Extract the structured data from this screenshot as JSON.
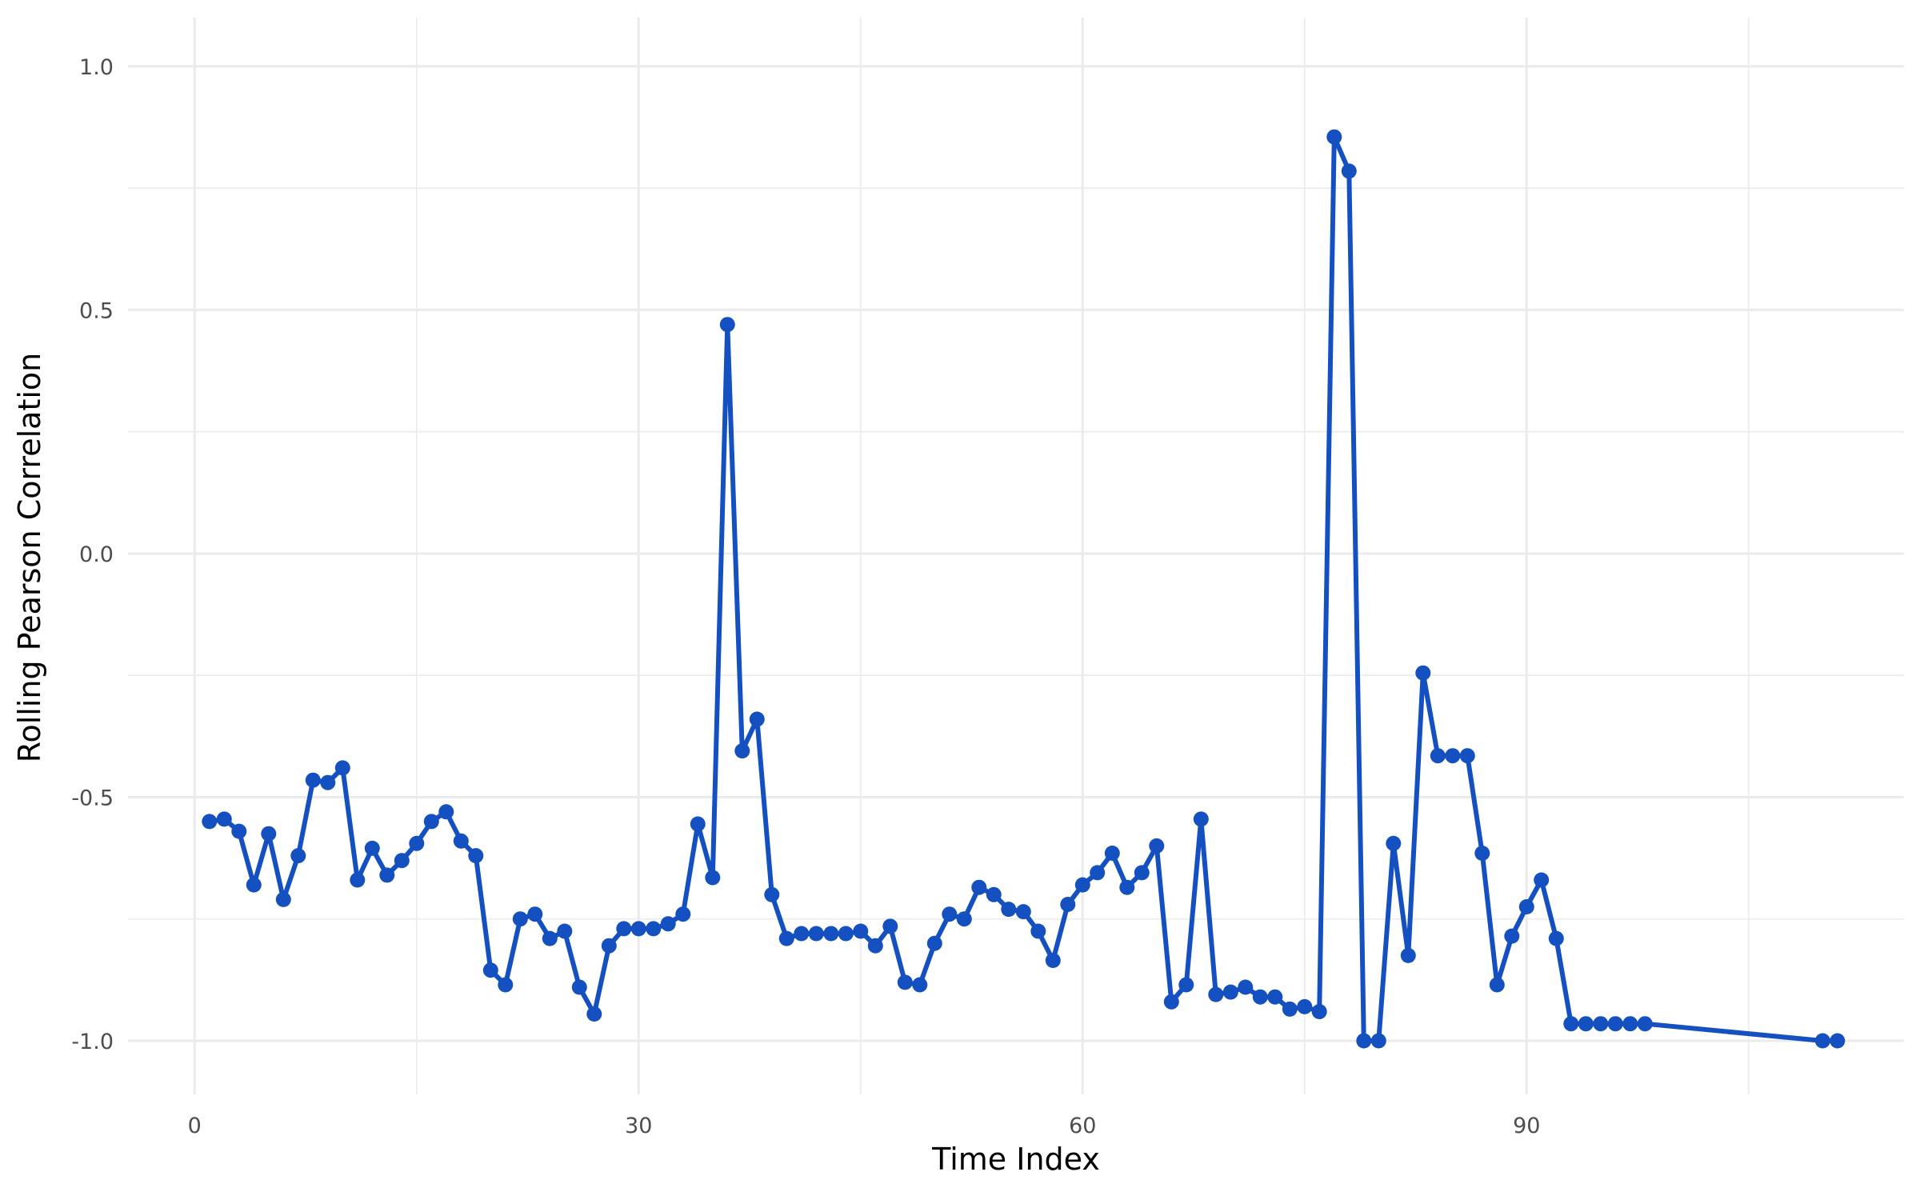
{
  "chart_data": {
    "type": "line",
    "title": "",
    "xlabel": "Time Index",
    "ylabel": "Rolling Pearson Correlation",
    "xlim": [
      -4.5,
      115.5
    ],
    "ylim": [
      -1.11,
      1.1
    ],
    "x_major_ticks": [
      0,
      30,
      60,
      90
    ],
    "x_tick_labels": [
      "0",
      "30",
      "60",
      "90"
    ],
    "x_minor_ticks": [
      15,
      45,
      75,
      105
    ],
    "y_major_ticks": [
      1.0,
      0.5,
      0.0,
      -0.5,
      -1.0
    ],
    "y_tick_labels": [
      "1.0",
      "0.5",
      "0.0",
      "-0.5",
      "-1.0"
    ],
    "y_minor_ticks": [
      0.75,
      0.25,
      -0.25,
      -0.75
    ],
    "grid": true,
    "legend": "none",
    "colors": {
      "line": "#1450c0",
      "grid": "#ebebeb",
      "tick_text": "#4d4d4d",
      "axis_text": "#000000",
      "background": "#ffffff"
    },
    "series": [
      {
        "x": [
          1,
          2,
          3,
          4,
          5,
          6,
          7,
          8,
          9,
          10,
          11,
          12,
          13,
          14,
          15,
          16,
          17,
          18,
          19,
          20,
          21,
          22,
          23,
          24,
          25,
          26,
          27,
          28,
          29,
          30,
          31,
          32,
          33,
          34,
          35,
          36,
          37,
          38,
          39,
          40,
          41,
          42,
          43,
          44,
          45,
          46,
          47,
          48,
          49,
          50,
          51,
          52,
          53,
          54,
          55,
          56,
          57,
          58,
          59,
          60,
          61,
          62,
          63,
          64,
          65,
          66,
          67,
          68,
          69,
          70,
          71,
          72,
          73,
          74,
          75,
          76,
          77,
          78,
          79,
          80,
          81,
          82,
          83,
          84,
          85,
          86,
          87,
          88,
          89,
          90,
          91,
          92,
          93,
          94,
          95,
          96,
          97,
          98,
          110,
          111
        ],
        "values": [
          -0.55,
          -0.545,
          -0.57,
          -0.68,
          -0.575,
          -0.71,
          -0.62,
          -0.465,
          -0.47,
          -0.44,
          -0.67,
          -0.605,
          -0.66,
          -0.63,
          -0.595,
          -0.55,
          -0.53,
          -0.59,
          -0.62,
          -0.855,
          -0.885,
          -0.75,
          -0.74,
          -0.79,
          -0.775,
          -0.89,
          -0.945,
          -0.805,
          -0.77,
          -0.77,
          -0.77,
          -0.76,
          -0.74,
          -0.555,
          -0.665,
          0.47,
          -0.405,
          -0.34,
          -0.7,
          -0.79,
          -0.78,
          -0.78,
          -0.78,
          -0.78,
          -0.775,
          -0.805,
          -0.765,
          -0.88,
          -0.885,
          -0.8,
          -0.74,
          -0.75,
          -0.685,
          -0.7,
          -0.73,
          -0.735,
          -0.775,
          -0.835,
          -0.72,
          -0.68,
          -0.655,
          -0.615,
          -0.685,
          -0.655,
          -0.6,
          -0.92,
          -0.885,
          -0.545,
          -0.905,
          -0.9,
          -0.89,
          -0.91,
          -0.91,
          -0.935,
          -0.93,
          -0.94,
          0.855,
          0.785,
          -1.0,
          -1.0,
          -0.595,
          -0.825,
          -0.245,
          -0.415,
          -0.415,
          -0.415,
          -0.615,
          -0.885,
          -0.785,
          -0.725,
          -0.67,
          -0.79,
          -0.965,
          -0.965,
          -0.965,
          -0.965,
          -0.965,
          -0.965,
          -1.0,
          -1.0
        ]
      }
    ]
  }
}
